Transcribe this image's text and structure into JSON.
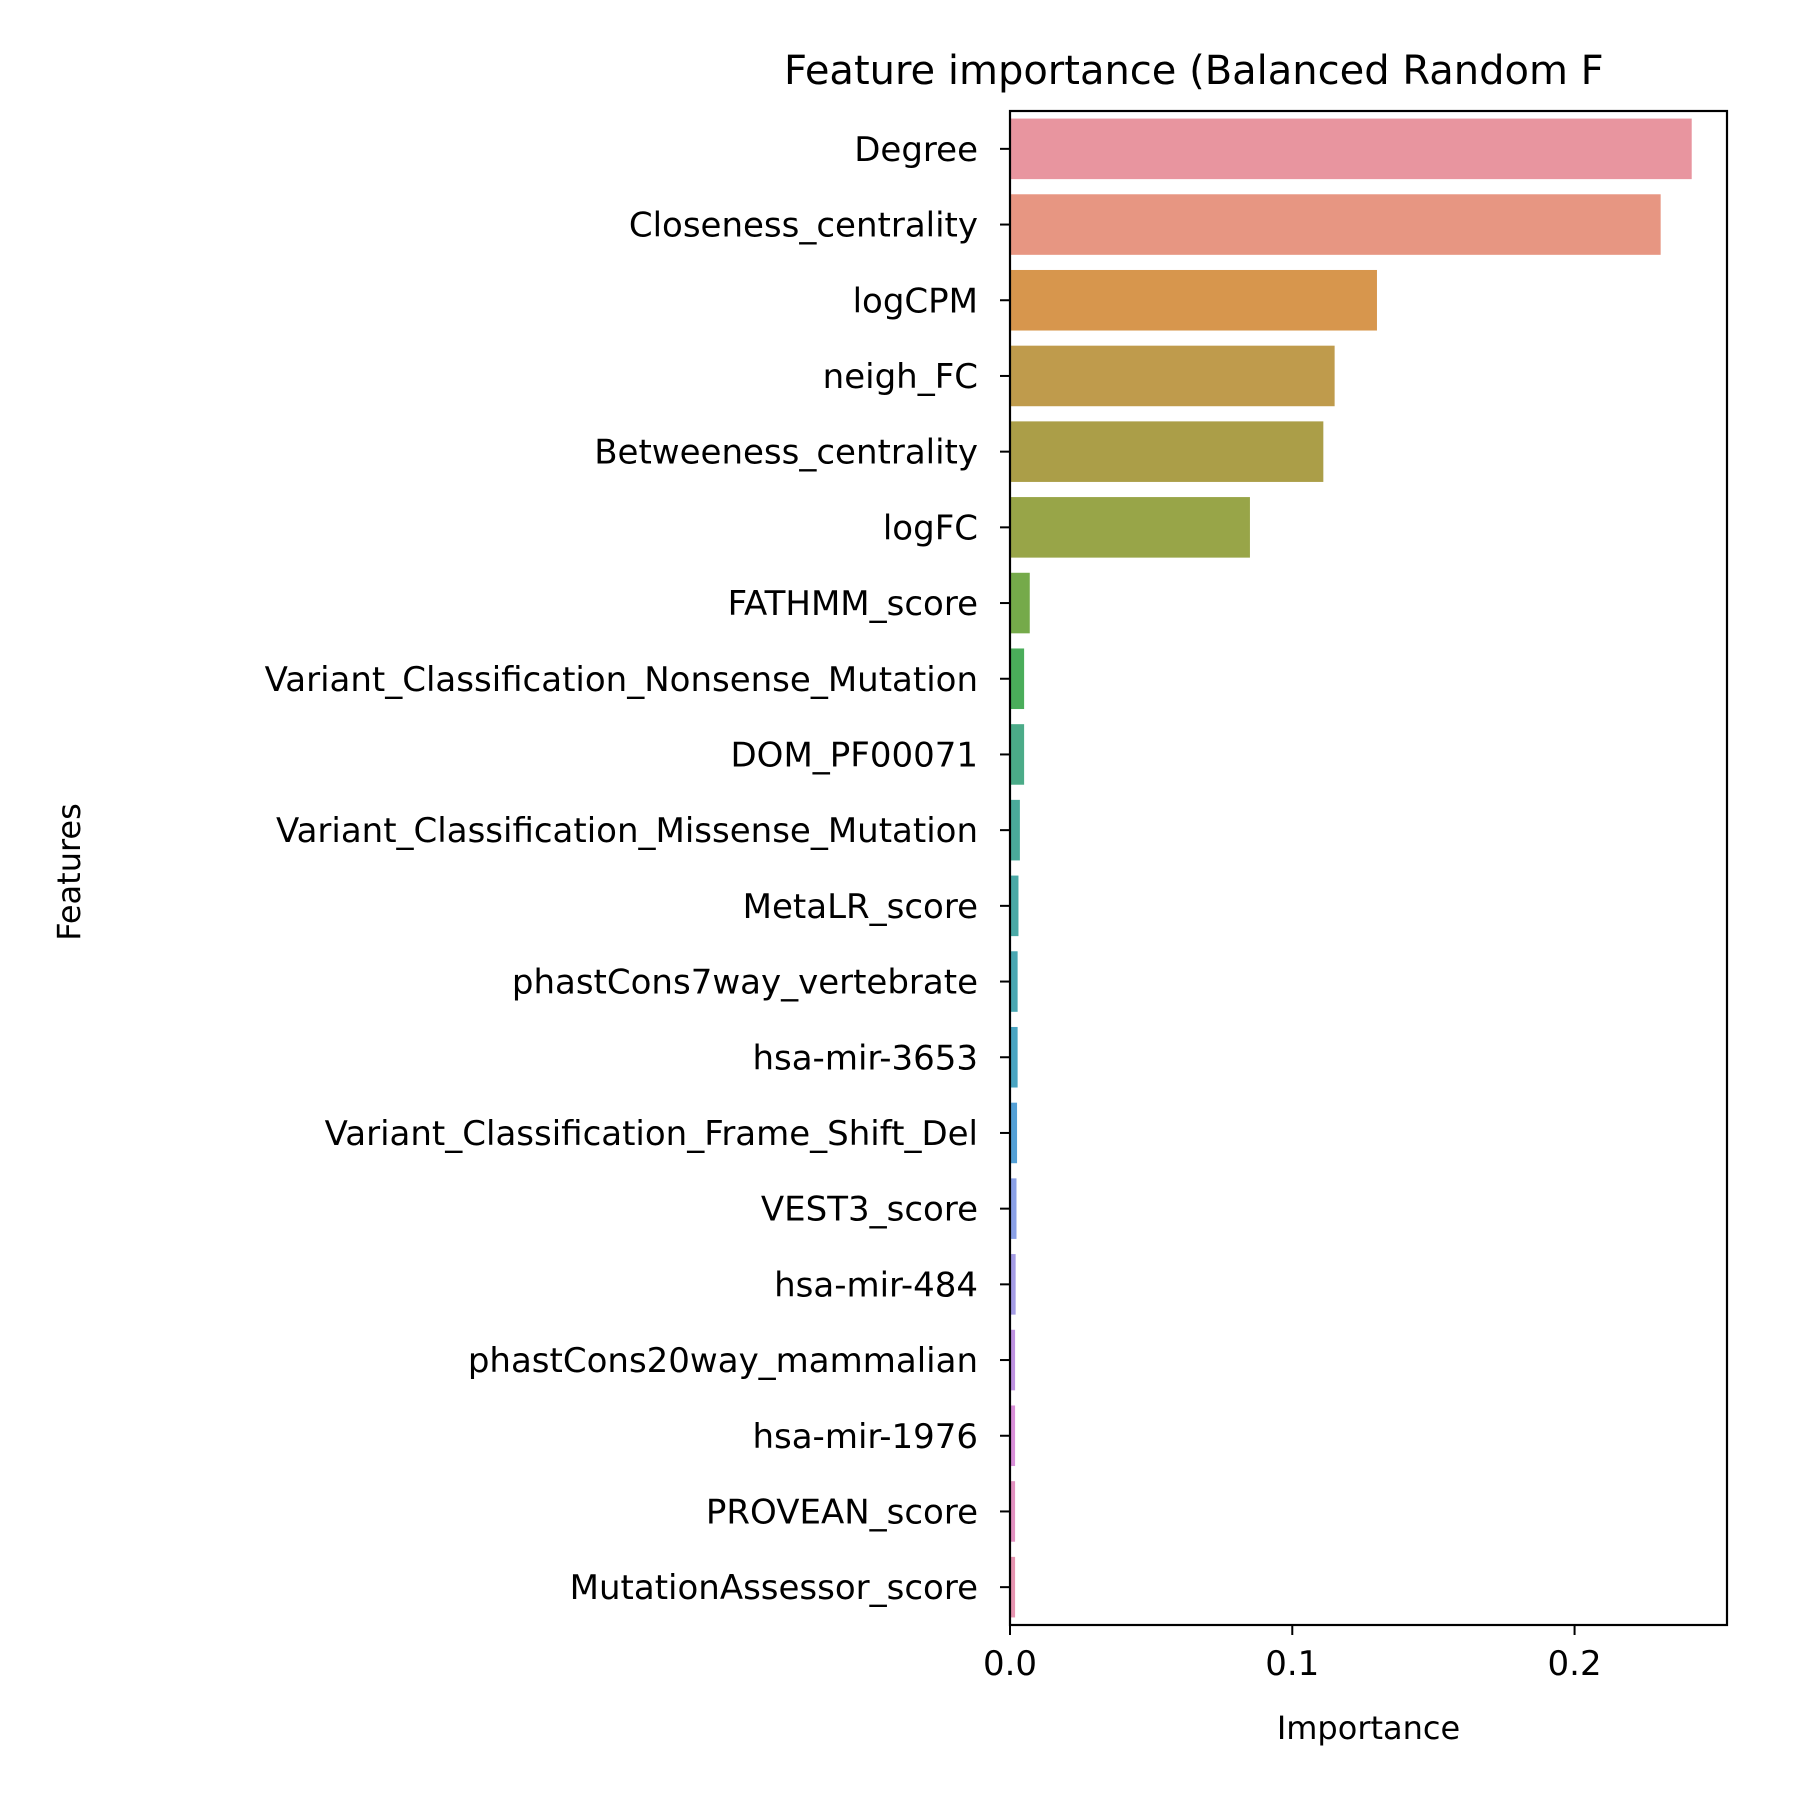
{
  "chart_data": {
    "type": "bar",
    "orientation": "horizontal",
    "title": "Feature importance (Balanced Random F",
    "xlabel": "Importance",
    "ylabel": "Features",
    "xlim": [
      0,
      0.254
    ],
    "xticks": [
      0.0,
      0.1,
      0.2
    ],
    "xtick_labels": [
      "0.0",
      "0.1",
      "0.2"
    ],
    "grid": false,
    "legend": "none",
    "categories": [
      "Degree",
      "Closeness_centrality",
      "logCPM",
      "neigh_FC",
      "Betweeness_centrality",
      "logFC",
      "FATHMM_score",
      "Variant_Classification_Nonsense_Mutation",
      "DOM_PF00071",
      "Variant_Classification_Missense_Mutation",
      "MetaLR_score",
      "phastCons7way_vertebrate",
      "hsa-mir-3653",
      "Variant_Classification_Frame_Shift_Del",
      "VEST3_score",
      "hsa-mir-484",
      "phastCons20way_mammalian",
      "hsa-mir-1976",
      "PROVEAN_score",
      "MutationAssessor_score"
    ],
    "values": [
      0.2415,
      0.2305,
      0.13,
      0.115,
      0.111,
      0.085,
      0.007,
      0.005,
      0.005,
      0.0035,
      0.003,
      0.0027,
      0.0027,
      0.0025,
      0.0023,
      0.002,
      0.0018,
      0.0018,
      0.0018,
      0.0018
    ],
    "colors": [
      "#e8959f",
      "#e79682",
      "#d7964d",
      "#bf9b4c",
      "#ab9e48",
      "#98a548",
      "#75aa4a",
      "#4aad5a",
      "#4bab88",
      "#4aaa9a",
      "#4aa9a6",
      "#4aa7b2",
      "#4aa5c2",
      "#54a0d6",
      "#8aa0e6",
      "#a49ce4",
      "#be92e0",
      "#d98fd8",
      "#e291c0",
      "#e694b0"
    ]
  }
}
